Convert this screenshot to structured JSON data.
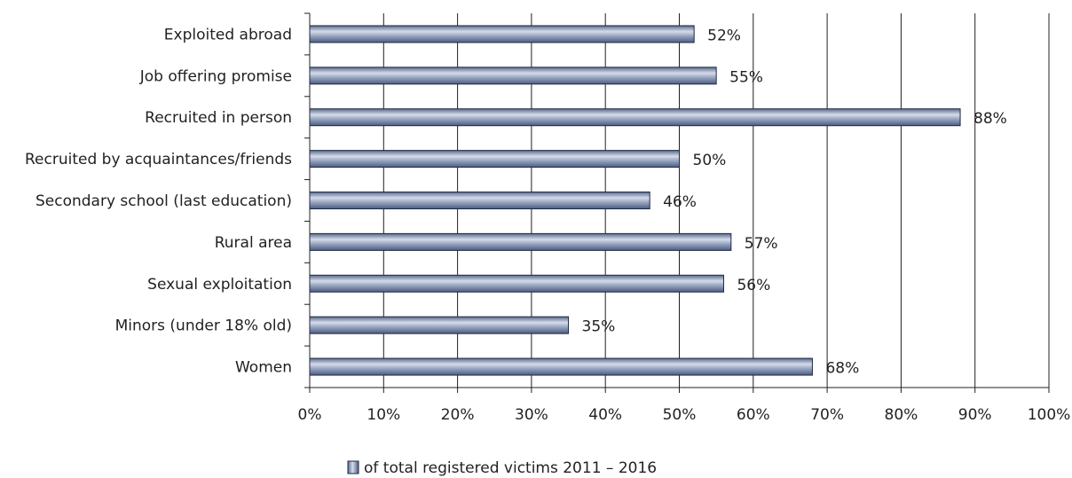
{
  "chart_data": {
    "type": "bar",
    "orientation": "horizontal",
    "categories": [
      "Exploited abroad",
      "Job offering promise",
      "Recruited in person",
      "Recruited by acquaintances/friends",
      "Secondary school (last education)",
      "Rural area",
      "Sexual exploitation",
      "Minors (under 18% old)",
      "Women"
    ],
    "series": [
      {
        "name": "of total registered victims 2011 – 2016",
        "values": [
          52,
          55,
          88,
          50,
          46,
          57,
          56,
          35,
          68
        ]
      }
    ],
    "data_labels": [
      "52%",
      "55%",
      "88%",
      "50%",
      "46%",
      "57%",
      "56%",
      "35%",
      "68%"
    ],
    "x_ticks": [
      "0%",
      "10%",
      "20%",
      "30%",
      "40%",
      "50%",
      "60%",
      "70%",
      "80%",
      "90%",
      "100%"
    ],
    "xlim": [
      0,
      100
    ],
    "grid": "vertical",
    "legend_position": "bottom",
    "bar_color": "#8393b4",
    "bar_edge_color": "#1f2a44"
  }
}
